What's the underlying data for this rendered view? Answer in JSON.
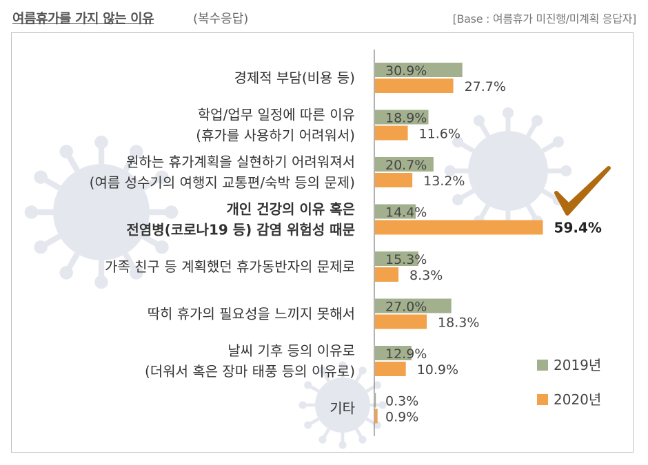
{
  "header": {
    "title": "여름휴가를 가지 않는 이유",
    "subtitle": "(복수응답)",
    "base_note": "[Base : 여름휴가 미진행/미계획 응답자]"
  },
  "colors": {
    "series_2019": "#a3b08e",
    "series_2020": "#f2a24a",
    "checkmark": "#b06a10",
    "axis": "#666666",
    "watermark": "#e4e8ee"
  },
  "decorations": {
    "checkmark_icon": "check-icon",
    "watermark_icon": "virus-icon"
  },
  "chart_data": {
    "type": "bar",
    "orientation": "horizontal",
    "categories": [
      [
        "경제적 부담(비용 등)"
      ],
      [
        "학업/업무 일정에 따른 이유",
        "(휴가를 사용하기 어려워서)"
      ],
      [
        "원하는 휴가계획을 실현하기 어려워져서",
        "(여름 성수기의 여행지 교통편/숙박 등의 문제)"
      ],
      [
        "개인 건강의 이유 혹은",
        "전염병(코로나19 등) 감염 위험성 때문"
      ],
      [
        "가족 친구 등 계획했던 휴가동반자의 문제로"
      ],
      [
        "딱히 휴가의 필요성을 느끼지 못해서"
      ],
      [
        "날씨 기후 등의 이유로",
        "(더워서 혹은 장마 태풍 등의 이유로)"
      ],
      [
        "기타"
      ]
    ],
    "highlight_index": 3,
    "series": [
      {
        "name": "2019년",
        "values": [
          30.9,
          18.9,
          20.7,
          14.4,
          15.3,
          27.0,
          12.9,
          0.3
        ],
        "labels": [
          "30.9%",
          "18.9%",
          "20.7%",
          "14.4%",
          "15.3%",
          "27.0%",
          "12.9%",
          "0.3%"
        ]
      },
      {
        "name": "2020년",
        "values": [
          27.7,
          11.6,
          13.2,
          59.4,
          8.3,
          18.3,
          10.9,
          0.9
        ],
        "labels": [
          "27.7%",
          "11.6%",
          "13.2%",
          "59.4%",
          "8.3%",
          "18.3%",
          "10.9%",
          "0.9%"
        ]
      }
    ],
    "unit": "%",
    "legend_position": "bottom-right",
    "grid": false
  }
}
